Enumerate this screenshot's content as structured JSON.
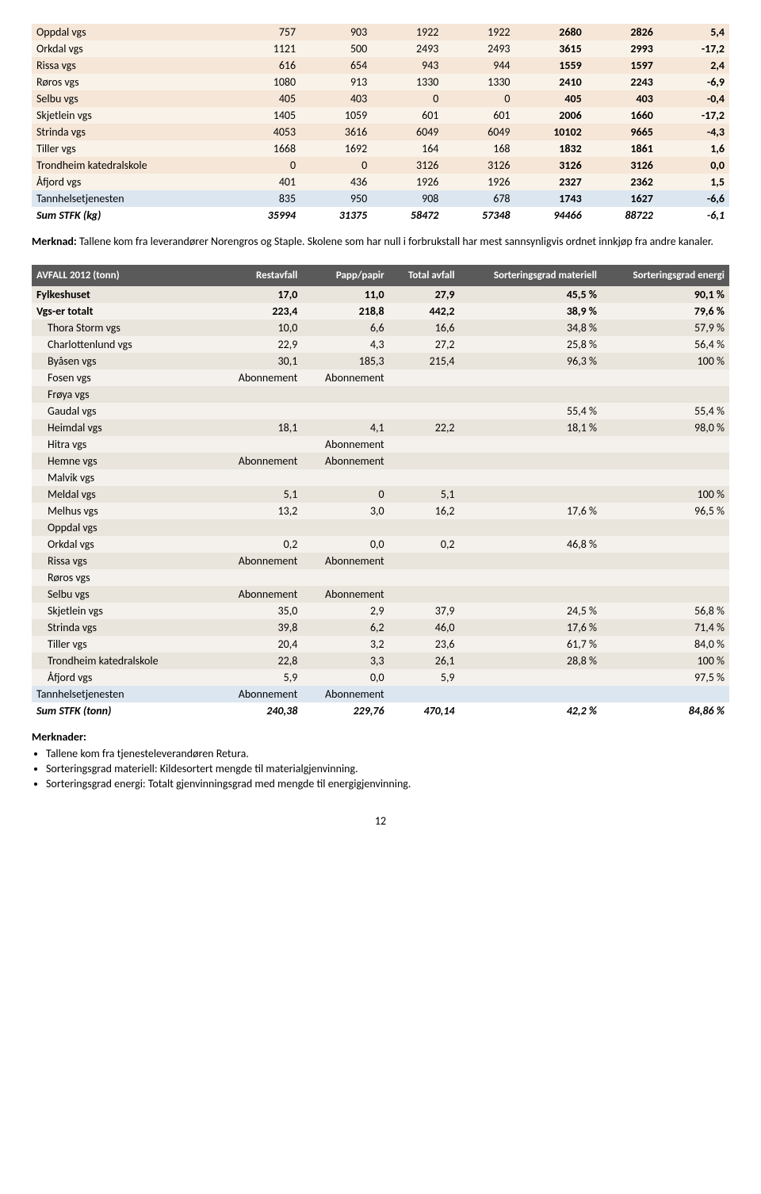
{
  "table1": {
    "rows": [
      {
        "name": "Oppdal vgs",
        "v": [
          "757",
          "903",
          "1922",
          "1922",
          "2680",
          "2826",
          "5,4"
        ]
      },
      {
        "name": "Orkdal vgs",
        "v": [
          "1121",
          "500",
          "2493",
          "2493",
          "3615",
          "2993",
          "-17,2"
        ]
      },
      {
        "name": "Rissa vgs",
        "v": [
          "616",
          "654",
          "943",
          "944",
          "1559",
          "1597",
          "2,4"
        ]
      },
      {
        "name": "Røros vgs",
        "v": [
          "1080",
          "913",
          "1330",
          "1330",
          "2410",
          "2243",
          "-6,9"
        ]
      },
      {
        "name": "Selbu vgs",
        "v": [
          "405",
          "403",
          "0",
          "0",
          "405",
          "403",
          "-0,4"
        ]
      },
      {
        "name": "Skjetlein vgs",
        "v": [
          "1405",
          "1059",
          "601",
          "601",
          "2006",
          "1660",
          "-17,2"
        ]
      },
      {
        "name": "Strinda vgs",
        "v": [
          "4053",
          "3616",
          "6049",
          "6049",
          "10102",
          "9665",
          "-4,3"
        ]
      },
      {
        "name": "Tiller vgs",
        "v": [
          "1668",
          "1692",
          "164",
          "168",
          "1832",
          "1861",
          "1,6"
        ]
      },
      {
        "name": "Trondheim katedralskole",
        "v": [
          "0",
          "0",
          "3126",
          "3126",
          "3126",
          "3126",
          "0,0"
        ]
      },
      {
        "name": "Åfjord vgs",
        "v": [
          "401",
          "436",
          "1926",
          "1926",
          "2327",
          "2362",
          "1,5"
        ]
      }
    ],
    "tann": {
      "name": "Tannhelsetjenesten",
      "v": [
        "835",
        "950",
        "908",
        "678",
        "1743",
        "1627",
        "-6,6"
      ]
    },
    "sum": {
      "name": "Sum STFK (kg)",
      "v": [
        "35994",
        "31375",
        "58472",
        "57348",
        "94466",
        "88722",
        "-6,1"
      ]
    }
  },
  "note1_label": "Merknad:",
  "note1_text": " Tallene kom fra leverandører Norengros og Staple. Skolene som har null i forbrukstall har mest sannsynligvis ordnet innkjøp fra andre kanaler.",
  "table2": {
    "headers": [
      "AVFALL 2012 (tonn)",
      "Restavfall",
      "Papp/papir",
      "Total avfall",
      "Sorteringsgrad materiell",
      "Sorteringsgrad energi"
    ],
    "fylk": {
      "name": "Fylkeshuset",
      "v": [
        "17,0",
        "11,0",
        "27,9",
        "45,5 %",
        "90,1 %"
      ]
    },
    "vgs_total": {
      "name": "Vgs-er totalt",
      "v": [
        "223,4",
        "218,8",
        "442,2",
        "38,9 %",
        "79,6 %"
      ]
    },
    "rows": [
      {
        "name": "Thora Storm vgs",
        "v": [
          "10,0",
          "6,6",
          "16,6",
          "34,8 %",
          "57,9 %"
        ]
      },
      {
        "name": "Charlottenlund vgs",
        "v": [
          "22,9",
          "4,3",
          "27,2",
          "25,8 %",
          "56,4 %"
        ]
      },
      {
        "name": "Byåsen vgs",
        "v": [
          "30,1",
          "185,3",
          "215,4",
          "96,3 %",
          "100 %"
        ]
      },
      {
        "name": "Fosen vgs",
        "v": [
          "Abonnement",
          "Abonnement",
          "",
          "",
          ""
        ]
      },
      {
        "name": "Frøya vgs",
        "v": [
          "",
          "",
          "",
          "",
          ""
        ]
      },
      {
        "name": "Gaudal vgs",
        "v": [
          "",
          "",
          "",
          "55,4 %",
          "55,4 %"
        ]
      },
      {
        "name": "Heimdal vgs",
        "v": [
          "18,1",
          "4,1",
          "22,2",
          "18,1 %",
          "98,0 %"
        ]
      },
      {
        "name": "Hitra vgs",
        "v": [
          "",
          "Abonnement",
          "",
          "",
          ""
        ]
      },
      {
        "name": "Hemne vgs",
        "v": [
          "Abonnement",
          "Abonnement",
          "",
          "",
          ""
        ]
      },
      {
        "name": "Malvik vgs",
        "v": [
          "",
          "",
          "",
          "",
          ""
        ]
      },
      {
        "name": "Meldal vgs",
        "v": [
          "5,1",
          "0",
          "5,1",
          "",
          "100 %"
        ]
      },
      {
        "name": "Melhus vgs",
        "v": [
          "13,2",
          "3,0",
          "16,2",
          "17,6 %",
          "96,5 %"
        ]
      },
      {
        "name": "Oppdal vgs",
        "v": [
          "",
          "",
          "",
          "",
          ""
        ]
      },
      {
        "name": "Orkdal vgs",
        "v": [
          "0,2",
          "0,0",
          "0,2",
          "46,8 %",
          ""
        ]
      },
      {
        "name": "Rissa vgs",
        "v": [
          "Abonnement",
          "Abonnement",
          "",
          "",
          ""
        ]
      },
      {
        "name": "Røros vgs",
        "v": [
          "",
          "",
          "",
          "",
          ""
        ]
      },
      {
        "name": "Selbu vgs",
        "v": [
          "Abonnement",
          "Abonnement",
          "",
          "",
          ""
        ]
      },
      {
        "name": "Skjetlein vgs",
        "v": [
          "35,0",
          "2,9",
          "37,9",
          "24,5 %",
          "56,8 %"
        ]
      },
      {
        "name": "Strinda vgs",
        "v": [
          "39,8",
          "6,2",
          "46,0",
          "17,6 %",
          "71,4 %"
        ]
      },
      {
        "name": "Tiller vgs",
        "v": [
          "20,4",
          "3,2",
          "23,6",
          "61,7 %",
          "84,0 %"
        ]
      },
      {
        "name": "Trondheim katedralskole",
        "v": [
          "22,8",
          "3,3",
          "26,1",
          "28,8 %",
          "100 %"
        ]
      },
      {
        "name": "Åfjord vgs",
        "v": [
          "5,9",
          "0,0",
          "5,9",
          "",
          "97,5 %"
        ]
      }
    ],
    "tann": {
      "name": "Tannhelsetjenesten",
      "v": [
        "Abonnement",
        "Abonnement",
        "",
        "",
        ""
      ]
    },
    "sum": {
      "name": "Sum STFK (tonn)",
      "v": [
        "240,38",
        "229,76",
        "470,14",
        "42,2 %",
        "84,86 %"
      ]
    }
  },
  "notes2_label": "Merknader:",
  "notes2_items": [
    "Tallene kom fra tjenesteleverandøren Retura.",
    "Sorteringsgrad materiell: Kildesortert mengde til materialgjenvinning.",
    "Sorteringsgrad energi: Totalt gjenvinningsgrad med mengde til energigjenvinning."
  ],
  "page_num": "12"
}
